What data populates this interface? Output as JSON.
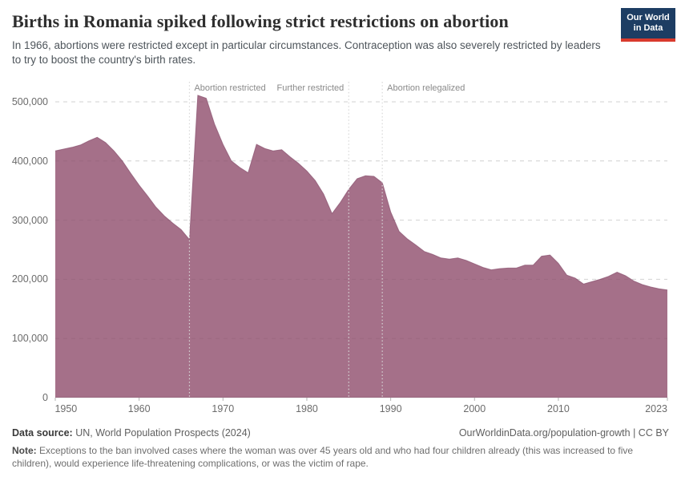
{
  "header": {
    "title": "Births in Romania spiked following strict restrictions on abortion",
    "subtitle": "In 1966, abortions were restricted except in particular circumstances. Contraception was also severely restricted by leaders to try to boost the country's birth rates.",
    "logo": {
      "line1": "Our World",
      "line2": "in Data",
      "bg_color": "#1d3d63",
      "accent_color": "#d93a2d"
    }
  },
  "chart_data": {
    "type": "area",
    "title": "Births in Romania spiked following strict restrictions on abortion",
    "series_name": "Births",
    "xlabel": "",
    "ylabel": "",
    "xlim": [
      1950,
      2023
    ],
    "ylim": [
      0,
      530000
    ],
    "grid": "horizontal-dashed",
    "legend": "none",
    "fill_color": "#a26b85",
    "edge_color": "#8e5874",
    "x": [
      1950,
      1951,
      1952,
      1953,
      1954,
      1955,
      1956,
      1957,
      1958,
      1959,
      1960,
      1961,
      1962,
      1963,
      1964,
      1965,
      1966,
      1967,
      1968,
      1969,
      1970,
      1971,
      1972,
      1973,
      1974,
      1975,
      1976,
      1977,
      1978,
      1979,
      1980,
      1981,
      1982,
      1983,
      1984,
      1985,
      1986,
      1987,
      1988,
      1989,
      1990,
      1991,
      1992,
      1993,
      1994,
      1995,
      1996,
      1997,
      1998,
      1999,
      2000,
      2001,
      2002,
      2003,
      2004,
      2005,
      2006,
      2007,
      2008,
      2009,
      2010,
      2011,
      2012,
      2013,
      2014,
      2015,
      2016,
      2017,
      2018,
      2019,
      2020,
      2021,
      2022,
      2023
    ],
    "values": [
      417000,
      420000,
      423000,
      427000,
      434000,
      440000,
      431000,
      417000,
      400000,
      379000,
      359000,
      341000,
      322000,
      307000,
      295000,
      284000,
      267000,
      511000,
      506000,
      462000,
      428000,
      400000,
      389000,
      380000,
      428000,
      421000,
      417000,
      419000,
      407000,
      396000,
      383000,
      367000,
      344000,
      311000,
      330000,
      352000,
      370000,
      375000,
      374000,
      363000,
      314000,
      281000,
      268000,
      258000,
      247000,
      242000,
      236000,
      234000,
      236000,
      232000,
      226000,
      220000,
      216000,
      218000,
      219000,
      219000,
      224000,
      224000,
      239000,
      241000,
      227000,
      207000,
      202000,
      192000,
      196000,
      200000,
      205000,
      212000,
      206000,
      197000,
      191000,
      187000,
      184000,
      182000
    ],
    "x_ticks": [
      1950,
      1960,
      1970,
      1980,
      1990,
      2000,
      2010,
      2023
    ],
    "x_tick_labels": [
      "1950",
      "1960",
      "1970",
      "1980",
      "1990",
      "2000",
      "2010",
      "2023"
    ],
    "y_ticks": [
      0,
      100000,
      200000,
      300000,
      400000,
      500000
    ],
    "y_tick_labels": [
      "0",
      "100,000",
      "200,000",
      "300,000",
      "400,000",
      "500,000"
    ],
    "annotations": [
      {
        "year": 1966,
        "label": "Abortion restricted",
        "align": "left"
      },
      {
        "year": 1985,
        "label": "Further restricted",
        "align": "right"
      },
      {
        "year": 1989,
        "label": "Abortion relegalized",
        "align": "left"
      }
    ]
  },
  "footer": {
    "source_label": "Data source:",
    "source_text": " UN, World Population Prospects (2024)",
    "link_text": "OurWorldinData.org/population-growth | CC BY",
    "note_label": "Note:",
    "note_text": " Exceptions to the ban involved cases where the woman was over 45 years old and who had four children already (this was increased to five children), would experience life-threatening complications, or was the victim of rape."
  }
}
